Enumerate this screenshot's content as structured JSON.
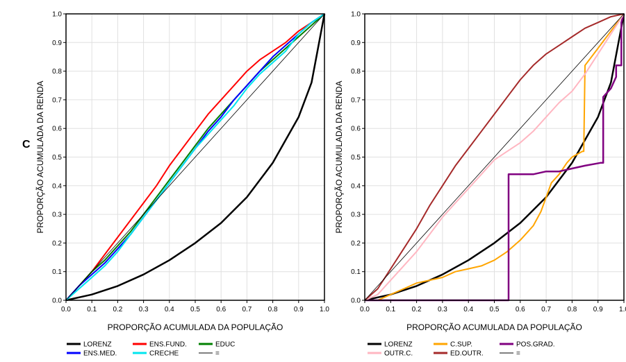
{
  "panel_label": "C",
  "chart_data": [
    {
      "type": "line",
      "xlabel": "PROPORÇÃO ACUMULADA DA POPULAÇÃO",
      "ylabel": "PROPORÇÃO ACUMULADA DA RENDA",
      "xlim": [
        0,
        1
      ],
      "ylim": [
        0,
        1
      ],
      "x_ticks": [
        "0.0",
        "0.1",
        "0.2",
        "0.3",
        "0.4",
        "0.5",
        "0.6",
        "0.7",
        "0.8",
        "0.9",
        "1.0"
      ],
      "y_ticks": [
        "0.0",
        "0.1",
        "0.2",
        "0.3",
        "0.4",
        "0.5",
        "0.6",
        "0.7",
        "0.8",
        "0.9",
        "1.0"
      ],
      "grid": true,
      "legend_position": "bottom",
      "series": [
        {
          "name": "LORENZ",
          "color": "#000000",
          "width": 2.5,
          "x": [
            0,
            0.1,
            0.2,
            0.3,
            0.4,
            0.5,
            0.6,
            0.7,
            0.8,
            0.9,
            0.95,
            1.0
          ],
          "y": [
            0,
            0.02,
            0.05,
            0.09,
            0.14,
            0.2,
            0.27,
            0.36,
            0.48,
            0.64,
            0.76,
            1.0
          ]
        },
        {
          "name": "ENS.FUND.",
          "color": "#ff0000",
          "width": 2,
          "x": [
            0,
            0.05,
            0.1,
            0.15,
            0.2,
            0.25,
            0.3,
            0.35,
            0.4,
            0.45,
            0.5,
            0.55,
            0.6,
            0.65,
            0.7,
            0.75,
            0.8,
            0.85,
            0.9,
            0.95,
            1.0
          ],
          "y": [
            0,
            0.05,
            0.1,
            0.16,
            0.22,
            0.28,
            0.34,
            0.4,
            0.47,
            0.53,
            0.59,
            0.65,
            0.7,
            0.75,
            0.8,
            0.84,
            0.87,
            0.9,
            0.94,
            0.97,
            1.0
          ]
        },
        {
          "name": "EDUC",
          "color": "#008000",
          "width": 2,
          "x": [
            0,
            0.05,
            0.1,
            0.15,
            0.2,
            0.25,
            0.3,
            0.35,
            0.4,
            0.45,
            0.5,
            0.55,
            0.6,
            0.65,
            0.7,
            0.75,
            0.8,
            0.85,
            0.9,
            0.95,
            1.0
          ],
          "y": [
            0,
            0.05,
            0.1,
            0.14,
            0.19,
            0.24,
            0.3,
            0.36,
            0.42,
            0.48,
            0.54,
            0.6,
            0.65,
            0.7,
            0.75,
            0.8,
            0.84,
            0.88,
            0.92,
            0.96,
            1.0
          ]
        },
        {
          "name": "ENS.MED.",
          "color": "#0000ff",
          "width": 2,
          "x": [
            0,
            0.05,
            0.1,
            0.15,
            0.2,
            0.25,
            0.3,
            0.35,
            0.4,
            0.45,
            0.5,
            0.55,
            0.6,
            0.65,
            0.7,
            0.75,
            0.8,
            0.85,
            0.9,
            0.95,
            1.0
          ],
          "y": [
            0,
            0.05,
            0.09,
            0.13,
            0.18,
            0.23,
            0.29,
            0.35,
            0.41,
            0.47,
            0.53,
            0.59,
            0.64,
            0.7,
            0.75,
            0.8,
            0.85,
            0.89,
            0.93,
            0.97,
            1.0
          ]
        },
        {
          "name": "CRECHE",
          "color": "#00e5ee",
          "width": 2,
          "x": [
            0,
            0.05,
            0.1,
            0.15,
            0.2,
            0.25,
            0.3,
            0.35,
            0.4,
            0.45,
            0.5,
            0.55,
            0.6,
            0.65,
            0.7,
            0.75,
            0.8,
            0.85,
            0.9,
            0.95,
            1.0
          ],
          "y": [
            0,
            0.04,
            0.08,
            0.12,
            0.17,
            0.23,
            0.29,
            0.35,
            0.41,
            0.47,
            0.53,
            0.58,
            0.63,
            0.68,
            0.74,
            0.79,
            0.83,
            0.87,
            0.93,
            0.97,
            1.0
          ]
        },
        {
          "name": "=",
          "color": "#000000",
          "width": 0.8,
          "x": [
            0,
            1
          ],
          "y": [
            0,
            1
          ]
        }
      ]
    },
    {
      "type": "line",
      "xlabel": "PROPORÇÃO ACUMULADA DA POPULAÇÃO",
      "ylabel": "PROPORÇÃO ACUMULADA DA RENDA",
      "xlim": [
        0,
        1
      ],
      "ylim": [
        0,
        1
      ],
      "x_ticks": [
        "0.0",
        "0.1",
        "0.2",
        "0.3",
        "0.4",
        "0.5",
        "0.6",
        "0.7",
        "0.8",
        "0.9",
        "1.0"
      ],
      "y_ticks": [
        "0.0",
        "0.1",
        "0.2",
        "0.3",
        "0.4",
        "0.5",
        "0.6",
        "0.7",
        "0.8",
        "0.9",
        "1.0"
      ],
      "grid": true,
      "legend_position": "bottom",
      "series": [
        {
          "name": "LORENZ",
          "color": "#000000",
          "width": 2.5,
          "x": [
            0,
            0.1,
            0.2,
            0.3,
            0.4,
            0.5,
            0.6,
            0.7,
            0.8,
            0.9,
            0.95,
            1.0
          ],
          "y": [
            0,
            0.02,
            0.05,
            0.09,
            0.14,
            0.2,
            0.27,
            0.36,
            0.48,
            0.64,
            0.76,
            1.0
          ]
        },
        {
          "name": "C.SUP.",
          "color": "#ffa500",
          "width": 2,
          "x": [
            0,
            0.05,
            0.1,
            0.15,
            0.2,
            0.25,
            0.3,
            0.35,
            0.4,
            0.45,
            0.5,
            0.55,
            0.6,
            0.65,
            0.68,
            0.7,
            0.72,
            0.75,
            0.78,
            0.8,
            0.82,
            0.84,
            0.845,
            0.85,
            0.9,
            0.95,
            1.0
          ],
          "y": [
            0,
            0.0,
            0.02,
            0.04,
            0.06,
            0.07,
            0.08,
            0.1,
            0.11,
            0.12,
            0.14,
            0.17,
            0.21,
            0.26,
            0.31,
            0.36,
            0.41,
            0.44,
            0.48,
            0.5,
            0.51,
            0.52,
            0.52,
            0.82,
            0.88,
            0.94,
            1.0
          ]
        },
        {
          "name": "POS.GRAD.",
          "color": "#800080",
          "width": 2.5,
          "x": [
            0,
            0.555,
            0.555,
            0.65,
            0.7,
            0.75,
            0.8,
            0.85,
            0.91,
            0.91,
            0.92,
            0.92,
            0.95,
            0.97,
            0.97,
            0.99,
            0.99,
            1.0
          ],
          "y": [
            0,
            0.0,
            0.44,
            0.44,
            0.45,
            0.45,
            0.46,
            0.47,
            0.48,
            0.48,
            0.48,
            0.71,
            0.74,
            0.78,
            0.82,
            0.82,
            0.97,
            1.0
          ]
        },
        {
          "name": "OUTR.C.",
          "color": "#ffb6c1",
          "width": 2,
          "x": [
            0,
            0.05,
            0.1,
            0.15,
            0.2,
            0.25,
            0.3,
            0.35,
            0.4,
            0.45,
            0.5,
            0.55,
            0.6,
            0.65,
            0.7,
            0.75,
            0.8,
            0.85,
            0.9,
            0.95,
            1.0
          ],
          "y": [
            0,
            0.02,
            0.07,
            0.12,
            0.17,
            0.23,
            0.29,
            0.34,
            0.39,
            0.44,
            0.49,
            0.52,
            0.55,
            0.59,
            0.64,
            0.69,
            0.73,
            0.79,
            0.86,
            0.93,
            1.0
          ]
        },
        {
          "name": "ED.OUTR.",
          "color": "#a52a2a",
          "width": 2,
          "x": [
            0,
            0.05,
            0.1,
            0.15,
            0.2,
            0.25,
            0.3,
            0.35,
            0.4,
            0.45,
            0.5,
            0.55,
            0.6,
            0.65,
            0.7,
            0.75,
            0.8,
            0.85,
            0.9,
            0.95,
            1.0
          ],
          "y": [
            0,
            0.04,
            0.11,
            0.18,
            0.25,
            0.33,
            0.4,
            0.47,
            0.53,
            0.59,
            0.65,
            0.71,
            0.77,
            0.82,
            0.86,
            0.89,
            0.92,
            0.95,
            0.97,
            0.99,
            1.0
          ]
        },
        {
          "name": "=",
          "color": "#000000",
          "width": 0.8,
          "x": [
            0,
            1
          ],
          "y": [
            0,
            1
          ]
        }
      ]
    }
  ]
}
